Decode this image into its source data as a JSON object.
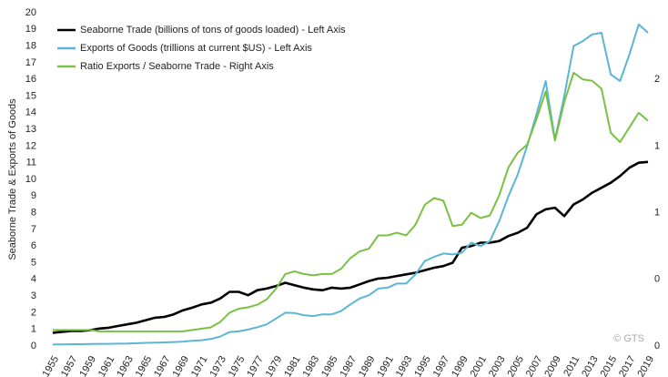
{
  "chart_data": {
    "type": "line",
    "y_label": "Seaborne Trade & Exports of Goods",
    "annotation": "© GTS",
    "x": [
      1955,
      1956,
      1957,
      1958,
      1959,
      1960,
      1961,
      1962,
      1963,
      1964,
      1965,
      1966,
      1967,
      1968,
      1969,
      1970,
      1971,
      1972,
      1973,
      1974,
      1975,
      1976,
      1977,
      1978,
      1979,
      1980,
      1981,
      1982,
      1983,
      1984,
      1985,
      1986,
      1987,
      1988,
      1989,
      1990,
      1991,
      1992,
      1993,
      1994,
      1995,
      1996,
      1997,
      1998,
      1999,
      2000,
      2001,
      2002,
      2003,
      2004,
      2005,
      2006,
      2007,
      2008,
      2009,
      2010,
      2011,
      2012,
      2013,
      2014,
      2015,
      2016,
      2017,
      2018,
      2019
    ],
    "xlim": [
      1955,
      2019
    ],
    "xticks": [
      1955,
      1957,
      1959,
      1961,
      1963,
      1965,
      1967,
      1969,
      1971,
      1973,
      1975,
      1977,
      1979,
      1981,
      1983,
      1985,
      1987,
      1989,
      1991,
      1993,
      1995,
      1997,
      1999,
      2001,
      2003,
      2005,
      2007,
      2009,
      2011,
      2013,
      2015,
      2017,
      2019
    ],
    "ylim": [
      0,
      20
    ],
    "yticks": [
      0,
      1,
      2,
      3,
      4,
      5,
      6,
      7,
      8,
      9,
      10,
      11,
      12,
      13,
      14,
      15,
      16,
      17,
      18,
      19,
      20
    ],
    "y2lim": [
      0,
      2.5
    ],
    "y2ticks": [
      0,
      {
        "value": 0.5,
        "label": "0"
      },
      1,
      {
        "value": 1.5,
        "label": "1"
      },
      2
    ],
    "series": [
      {
        "name": "Seaborne Trade (billions of tons of goods loaded) - Left Axis",
        "color": "#000000",
        "values": [
          0.8,
          0.85,
          0.9,
          0.9,
          0.95,
          1.05,
          1.1,
          1.2,
          1.3,
          1.4,
          1.55,
          1.7,
          1.75,
          1.9,
          2.15,
          2.3,
          2.5,
          2.6,
          2.85,
          3.25,
          3.25,
          3.05,
          3.35,
          3.45,
          3.6,
          3.8,
          3.65,
          3.5,
          3.4,
          3.35,
          3.5,
          3.45,
          3.5,
          3.7,
          3.9,
          4.05,
          4.1,
          4.2,
          4.3,
          4.4,
          4.55,
          4.7,
          4.8,
          5.0,
          5.9,
          6.0,
          6.2,
          6.2,
          6.3,
          6.6,
          6.8,
          7.1,
          7.9,
          8.2,
          8.3,
          7.8,
          8.5,
          8.8,
          9.2,
          9.5,
          9.8,
          10.2,
          10.7,
          11.0,
          11.05
        ]
      },
      {
        "name": "Exports of Goods (trillions at current $US) - Left Axis",
        "color": "#5bb5d5",
        "values": [
          0.1,
          0.1,
          0.11,
          0.11,
          0.12,
          0.13,
          0.13,
          0.14,
          0.15,
          0.17,
          0.19,
          0.2,
          0.22,
          0.24,
          0.27,
          0.31,
          0.35,
          0.42,
          0.57,
          0.84,
          0.88,
          0.99,
          1.13,
          1.3,
          1.65,
          2.0,
          1.98,
          1.85,
          1.8,
          1.9,
          1.9,
          2.1,
          2.5,
          2.85,
          3.05,
          3.45,
          3.5,
          3.75,
          3.75,
          4.3,
          5.1,
          5.35,
          5.55,
          5.5,
          5.6,
          6.2,
          6.0,
          6.3,
          7.5,
          9.0,
          10.3,
          12.0,
          13.9,
          15.9,
          12.4,
          15.0,
          18.0,
          18.3,
          18.7,
          18.8,
          16.3,
          15.9,
          17.5,
          19.3,
          18.8
        ]
      },
      {
        "name": "Ratio Exports / Seaborne Trade - Right Axis",
        "color": "#7ac143",
        "axis": "y2",
        "values": [
          0.12,
          0.12,
          0.12,
          0.12,
          0.12,
          0.11,
          0.11,
          0.11,
          0.11,
          0.11,
          0.11,
          0.11,
          0.11,
          0.11,
          0.11,
          0.12,
          0.13,
          0.14,
          0.18,
          0.25,
          0.28,
          0.29,
          0.31,
          0.35,
          0.43,
          0.54,
          0.56,
          0.54,
          0.53,
          0.54,
          0.54,
          0.58,
          0.66,
          0.71,
          0.73,
          0.83,
          0.83,
          0.85,
          0.83,
          0.91,
          1.06,
          1.11,
          1.09,
          0.9,
          0.91,
          1.0,
          0.96,
          0.98,
          1.13,
          1.34,
          1.45,
          1.51,
          1.7,
          1.91,
          1.54,
          1.83,
          2.05,
          2.0,
          1.99,
          1.93,
          1.6,
          1.53,
          1.64,
          1.75,
          1.69
        ]
      }
    ]
  }
}
